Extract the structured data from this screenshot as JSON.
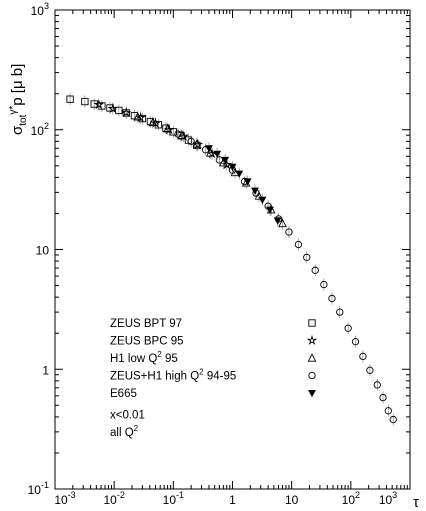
{
  "chart_data": {
    "type": "scatter",
    "title": "",
    "ylabel": "σ_tot γ*p [μ b]",
    "ylabel_parts": {
      "sigma": "σ",
      "sub": "tot",
      "sup": "γ*",
      "rest": "p [μ b]"
    },
    "xlabel": "τ",
    "x_scale": "log",
    "y_scale": "log",
    "xlim": [
      0.001,
      1000
    ],
    "ylim": [
      0.1,
      1000
    ],
    "grid": false,
    "x_ticks": [
      {
        "value": 0.001,
        "base": "10",
        "exp": "-3"
      },
      {
        "value": 0.01,
        "base": "10",
        "exp": "-2"
      },
      {
        "value": 0.1,
        "base": "10",
        "exp": "-1"
      },
      {
        "value": 1,
        "base": "1",
        "exp": ""
      },
      {
        "value": 10,
        "base": "10",
        "exp": ""
      },
      {
        "value": 100,
        "base": "10",
        "exp": "2"
      },
      {
        "value": 1000,
        "base": "10",
        "exp": "3"
      }
    ],
    "y_ticks": [
      {
        "value": 0.1,
        "base": "10",
        "exp": "-1"
      },
      {
        "value": 1,
        "base": "1",
        "exp": ""
      },
      {
        "value": 10,
        "base": "10",
        "exp": ""
      },
      {
        "value": 100,
        "base": "10",
        "exp": "2"
      },
      {
        "value": 1000,
        "base": "10",
        "exp": "3"
      }
    ],
    "legend": {
      "placement": "lower-center",
      "entries": [
        {
          "name": "ZEUS BPT 97",
          "marker": "square"
        },
        {
          "name": "ZEUS BPC 95",
          "marker": "star"
        },
        {
          "name": "H1 low Q² 95",
          "marker": "triangle"
        },
        {
          "name": "ZEUS+H1 high Q² 94-95",
          "marker": "circle"
        },
        {
          "name": "E665",
          "marker": "filled-down-triangle"
        }
      ],
      "notes": [
        "x<0.01",
        "all Q²"
      ]
    },
    "series": [
      {
        "name": "ZEUS BPT 97",
        "marker": "square",
        "points": [
          [
            0.0018,
            180
          ],
          [
            0.0032,
            172
          ],
          [
            0.0046,
            164
          ],
          [
            0.0062,
            158
          ],
          [
            0.0085,
            152
          ],
          [
            0.012,
            145
          ],
          [
            0.016,
            138
          ],
          [
            0.022,
            131
          ],
          [
            0.03,
            124
          ],
          [
            0.041,
            117
          ],
          [
            0.056,
            110
          ],
          [
            0.075,
            103
          ],
          [
            0.1,
            96
          ],
          [
            0.135,
            89
          ],
          [
            0.18,
            82
          ],
          [
            0.25,
            74
          ]
        ]
      },
      {
        "name": "ZEUS BPC 95",
        "marker": "star",
        "points": [
          [
            0.0055,
            162
          ],
          [
            0.0095,
            150
          ],
          [
            0.016,
            139
          ],
          [
            0.028,
            126
          ],
          [
            0.05,
            113
          ],
          [
            0.085,
            100
          ],
          [
            0.15,
            88
          ],
          [
            0.26,
            75
          ],
          [
            0.45,
            63
          ],
          [
            0.8,
            51
          ]
        ]
      },
      {
        "name": "H1 low Q² 95",
        "marker": "triangle",
        "points": [
          [
            0.025,
            128
          ],
          [
            0.045,
            115
          ],
          [
            0.08,
            102
          ],
          [
            0.14,
            90
          ],
          [
            0.25,
            76
          ],
          [
            0.42,
            64
          ],
          [
            0.7,
            53
          ],
          [
            1.1,
            44
          ],
          [
            1.7,
            36
          ],
          [
            2.8,
            28
          ],
          [
            4.5,
            21.5
          ],
          [
            7,
            16.5
          ]
        ]
      },
      {
        "name": "ZEUS+H1 high Q² 94-95",
        "marker": "circle",
        "points": [
          [
            0.12,
            92
          ],
          [
            0.2,
            80
          ],
          [
            0.35,
            68
          ],
          [
            0.6,
            56
          ],
          [
            1,
            46
          ],
          [
            1.6,
            37
          ],
          [
            2.5,
            29.5
          ],
          [
            4,
            23
          ],
          [
            6,
            18
          ],
          [
            9,
            14
          ],
          [
            13,
            11
          ],
          [
            18,
            8.6
          ],
          [
            25,
            6.7
          ],
          [
            35,
            5.1
          ],
          [
            48,
            3.9
          ],
          [
            65,
            3.0
          ],
          [
            90,
            2.2
          ],
          [
            120,
            1.7
          ],
          [
            160,
            1.28
          ],
          [
            210,
            0.98
          ],
          [
            280,
            0.74
          ],
          [
            350,
            0.58
          ],
          [
            430,
            0.45
          ],
          [
            520,
            0.38
          ]
        ]
      },
      {
        "name": "E665",
        "marker": "filled-down-triangle",
        "points": [
          [
            0.4,
            70
          ],
          [
            0.55,
            63
          ],
          [
            0.75,
            56
          ],
          [
            1.0,
            49
          ],
          [
            1.3,
            43
          ],
          [
            1.8,
            37
          ],
          [
            2.4,
            31
          ],
          [
            3.2,
            26
          ],
          [
            4.3,
            21.5
          ],
          [
            5.8,
            17.5
          ]
        ]
      }
    ]
  }
}
